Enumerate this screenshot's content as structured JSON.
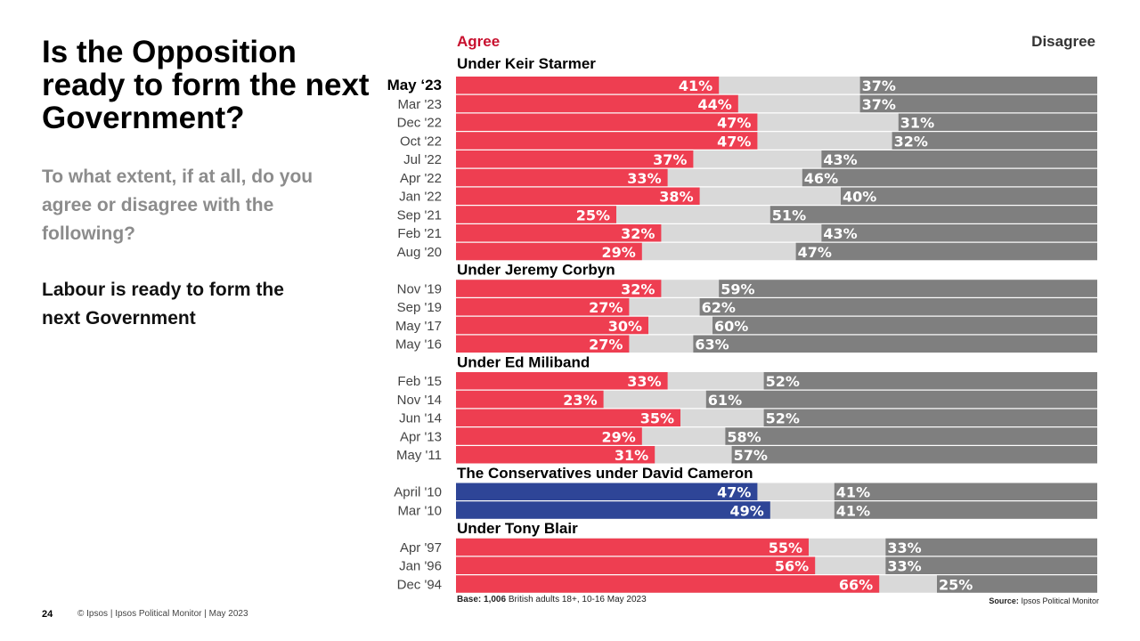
{
  "page": {
    "title": "Is the Opposition ready to form the next Government?",
    "question": "To what extent, if at all, do you agree or disagree with the following?",
    "statement": "Labour is ready to form the next Government",
    "legend_agree": "Agree",
    "legend_disagree": "Disagree",
    "footer_page": "24",
    "footer_copy": "© Ipsos | Ipsos Political Monitor | May 2023",
    "base_label": "Base:",
    "base_value": "1,006",
    "base_text": "British adults 18+, 10-16 May 2023",
    "source_label": "Source:",
    "source_text": "Ipsos Political Monitor"
  },
  "colors": {
    "agree": "#ee3e51",
    "agree_conservative": "#2e4597",
    "neither": "#d9d9d9",
    "disagree": "#7f7f7f",
    "agree_label": "#c8102e"
  },
  "chart_data": {
    "type": "bar",
    "title": "Is the Opposition ready to form the next Government?",
    "xlim": [
      0,
      100
    ],
    "units": "%",
    "groups": [
      {
        "name": "Under Keir Starmer",
        "rows": [
          {
            "label": "May ‘23",
            "agree": 41,
            "disagree": 37,
            "highlight": true
          },
          {
            "label": "Mar '23",
            "agree": 44,
            "disagree": 37
          },
          {
            "label": "Dec '22",
            "agree": 47,
            "disagree": 31
          },
          {
            "label": "Oct '22",
            "agree": 47,
            "disagree": 32
          },
          {
            "label": "Jul '22",
            "agree": 37,
            "disagree": 43
          },
          {
            "label": "Apr '22",
            "agree": 33,
            "disagree": 46
          },
          {
            "label": "Jan '22",
            "agree": 38,
            "disagree": 40
          },
          {
            "label": "Sep '21",
            "agree": 25,
            "disagree": 51
          },
          {
            "label": "Feb '21",
            "agree": 32,
            "disagree": 43
          },
          {
            "label": "Aug '20",
            "agree": 29,
            "disagree": 47
          }
        ]
      },
      {
        "name": "Under Jeremy Corbyn",
        "rows": [
          {
            "label": "Nov '19",
            "agree": 32,
            "disagree": 59
          },
          {
            "label": "Sep '19",
            "agree": 27,
            "disagree": 62
          },
          {
            "label": "May '17",
            "agree": 30,
            "disagree": 60
          },
          {
            "label": "May '16",
            "agree": 27,
            "disagree": 63
          }
        ]
      },
      {
        "name": "Under Ed Miliband",
        "rows": [
          {
            "label": "Feb '15",
            "agree": 33,
            "disagree": 52
          },
          {
            "label": "Nov '14",
            "agree": 23,
            "disagree": 61
          },
          {
            "label": "Jun '14",
            "agree": 35,
            "disagree": 52
          },
          {
            "label": "Apr '13",
            "agree": 29,
            "disagree": 58
          },
          {
            "label": "May '11",
            "agree": 31,
            "disagree": 57
          }
        ]
      },
      {
        "name": "The Conservatives under David Cameron",
        "conservative": true,
        "rows": [
          {
            "label": "April '10",
            "agree": 47,
            "disagree": 41
          },
          {
            "label": "Mar '10",
            "agree": 49,
            "disagree": 41
          }
        ]
      },
      {
        "name": "Under Tony Blair",
        "rows": [
          {
            "label": "Apr '97",
            "agree": 55,
            "disagree": 33
          },
          {
            "label": "Jan '96",
            "agree": 56,
            "disagree": 33
          },
          {
            "label": "Dec '94",
            "agree": 66,
            "disagree": 25
          }
        ]
      }
    ]
  }
}
